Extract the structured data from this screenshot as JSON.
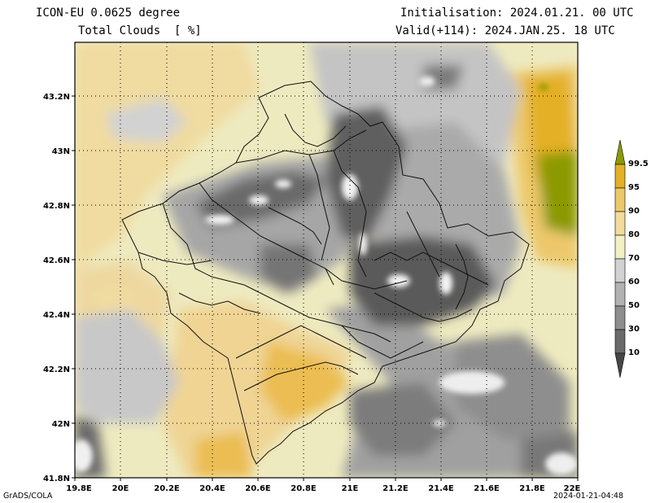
{
  "header": {
    "model": "ICON-EU 0.0625 degree",
    "variable": "Total Clouds  [ %]",
    "init": "Initialisation: 2024.01.21. 00 UTC",
    "valid": "Valid(+114): 2024.JAN.25. 18 UTC"
  },
  "axes": {
    "lat_ticks": [
      "43.2N",
      "43N",
      "42.8N",
      "42.6N",
      "42.4N",
      "42.2N",
      "42N",
      "41.8N"
    ],
    "lon_ticks": [
      "19.8E",
      "20E",
      "20.2E",
      "20.4E",
      "20.6E",
      "20.8E",
      "21E",
      "21.2E",
      "21.4E",
      "21.6E",
      "21.8E",
      "22E"
    ]
  },
  "colorbar": {
    "levels": [
      "99.5",
      "95",
      "90",
      "80",
      "70",
      "60",
      "50",
      "30",
      "10"
    ],
    "colors": [
      "#8c9a00",
      "#e4b028",
      "#ecc86a",
      "#f1dc9c",
      "#f2f0c4",
      "#d2d2d2",
      "#b2b2b2",
      "#8e8e8e",
      "#6a6a6a",
      "#474747",
      "#eeeeee"
    ]
  },
  "footer": {
    "left": "GrADS/COLA",
    "right": "2024-01-21-04:48"
  }
}
